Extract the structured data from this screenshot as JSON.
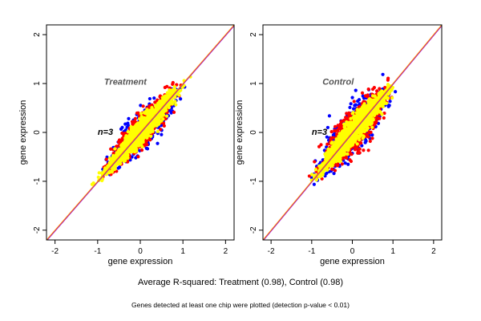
{
  "chart_data": [
    {
      "type": "scatter",
      "title": "Treatment",
      "n_label": "n=3",
      "xlabel": "gene expression",
      "ylabel": "gene expression",
      "xlim": [
        -2.2,
        2.2
      ],
      "ylim": [
        -2.2,
        2.2
      ],
      "xticks": [
        "-2",
        "-1",
        "0",
        "1",
        "2"
      ],
      "yticks": [
        "-2",
        "-1",
        "0",
        "1",
        "2"
      ],
      "series": [
        {
          "color": "#0000ff",
          "spread": 0.13,
          "count": 500,
          "range": [
            -1.15,
            1.15
          ]
        },
        {
          "color": "#ff0000",
          "spread": 0.11,
          "count": 700,
          "range": [
            -1.1,
            1.15
          ]
        },
        {
          "color": "#ffff00",
          "spread": 0.075,
          "count": 1700,
          "range": [
            -1.2,
            1.2
          ]
        }
      ],
      "reference_lines": [
        {
          "slope": 1,
          "intercept": 0,
          "color": "#9900cc"
        },
        {
          "slope": 1,
          "intercept": 0,
          "color": "#ff8c00"
        }
      ]
    },
    {
      "type": "scatter",
      "title": "Control",
      "n_label": "n=3",
      "xlabel": "gene expression",
      "ylabel": "gene expression",
      "xlim": [
        -2.2,
        2.2
      ],
      "ylim": [
        -2.2,
        2.2
      ],
      "xticks": [
        "-2",
        "-1",
        "0",
        "1",
        "2"
      ],
      "yticks": [
        "-2",
        "-1",
        "0",
        "1",
        "2"
      ],
      "series": [
        {
          "color": "#0000ff",
          "spread": 0.16,
          "count": 700,
          "range": [
            -1.15,
            1.15
          ]
        },
        {
          "color": "#ff0000",
          "spread": 0.14,
          "count": 900,
          "range": [
            -1.1,
            1.15
          ]
        },
        {
          "color": "#ffff00",
          "spread": 0.085,
          "count": 1700,
          "range": [
            -1.2,
            1.2
          ]
        }
      ],
      "reference_lines": [
        {
          "slope": 1,
          "intercept": 0,
          "color": "#9900cc"
        },
        {
          "slope": 1,
          "intercept": 0,
          "color": "#ff8c00"
        }
      ]
    }
  ],
  "captions": {
    "main": "Average R-squared: Treatment (0.98), Control (0.98)",
    "note": "Genes detected at least one chip were plotted (detection p-value < 0.01)"
  }
}
